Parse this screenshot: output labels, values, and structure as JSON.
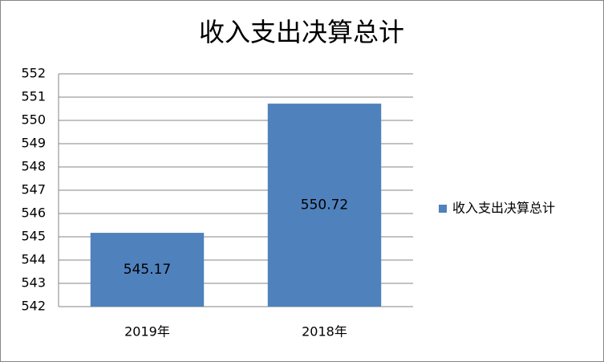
{
  "chart_data": {
    "type": "bar",
    "title": "收入支出决算总计",
    "categories": [
      "2019年",
      "2018年"
    ],
    "series": [
      {
        "name": "收入支出决算总计",
        "color": "#4f81bd",
        "values": [
          545.17,
          550.72
        ]
      }
    ],
    "ylim": [
      542,
      552
    ],
    "yticks": [
      542,
      543,
      544,
      545,
      546,
      547,
      548,
      549,
      550,
      551,
      552
    ],
    "grid": true,
    "legend": "right",
    "data_labels": true
  }
}
